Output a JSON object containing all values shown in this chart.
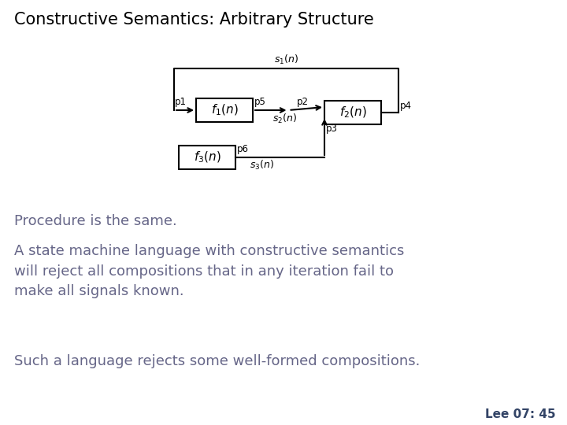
{
  "title": "Constructive Semantics: Arbitrary Structure",
  "title_fontsize": 15,
  "title_color": "#000000",
  "title_bold": false,
  "body_text_color": "#666688",
  "body_fontsize": 13,
  "footer_text": "Lee 07: 45",
  "footer_color": "#334466",
  "footer_fontsize": 11,
  "line1": "Procedure is the same.",
  "line2": "A state machine language with constructive semantics\nwill reject all compositions that in any iteration fail to\nmake all signals known.",
  "line3": "Such a language rejects some well-formed compositions.",
  "background_color": "#ffffff"
}
